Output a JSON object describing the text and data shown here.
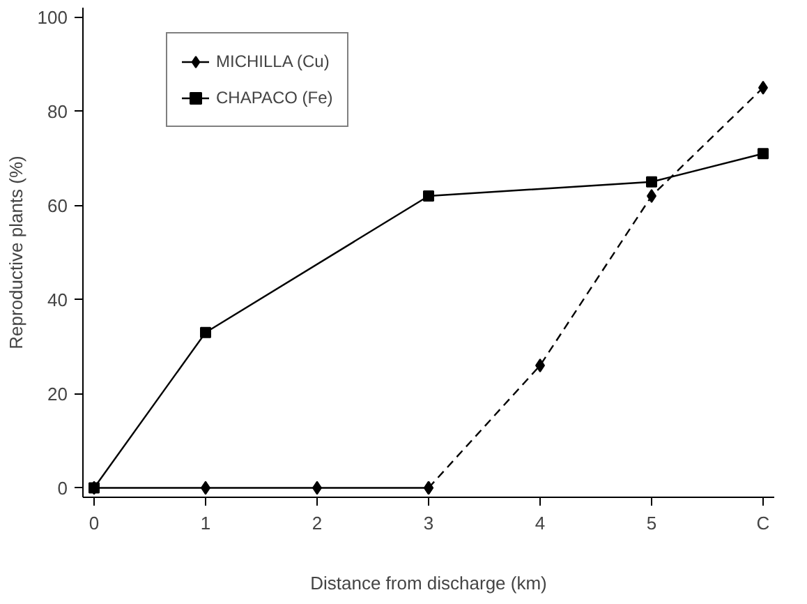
{
  "chart_data": {
    "type": "line",
    "xlabel": "Distance from discharge (km)",
    "ylabel": "Reproductive plants (%)",
    "xlim": [
      -0.1,
      6.1
    ],
    "xticks": [
      0,
      1,
      2,
      3,
      4,
      5,
      {
        "value": 6,
        "label": "C"
      }
    ],
    "ylim": [
      -2,
      102
    ],
    "yticks": [
      0,
      20,
      40,
      60,
      80,
      100
    ],
    "grid": false,
    "legend": "top left",
    "series": [
      {
        "name": "MICHILLA (Cu)",
        "color": "#000000",
        "marker": "diamond",
        "line_style": "solid",
        "x": [
          0,
          1,
          2,
          3
        ],
        "values": [
          0,
          0,
          0,
          0
        ]
      },
      {
        "color": "#000000",
        "marker": "diamond",
        "line_style": "dashed",
        "x": [
          3,
          4,
          5,
          6
        ],
        "values": [
          0,
          26,
          62,
          85
        ]
      },
      {
        "name": "CHAPACO (Fe)",
        "color": "#000000",
        "marker": "square",
        "line_style": "solid",
        "x": [
          0,
          1,
          3,
          5,
          6
        ],
        "values": [
          0,
          33,
          62,
          65,
          71
        ]
      }
    ]
  }
}
